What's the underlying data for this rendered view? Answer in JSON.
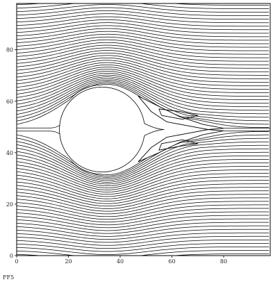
{
  "chart_data": {
    "type": "contour",
    "title": "",
    "caption": "FF5",
    "xlabel": "",
    "ylabel": "",
    "xlim": [
      0,
      98
    ],
    "ylim": [
      0,
      98
    ],
    "x_ticks": [
      0,
      20,
      40,
      60,
      80
    ],
    "y_ticks": [
      0,
      20,
      40,
      60,
      80
    ],
    "grid": false,
    "legend": "none",
    "streamline_count": 72,
    "body": {
      "description_shape": "bluff body with tapering tail",
      "center": [
        33,
        49
      ],
      "radius": 16.5,
      "tail_tip_x": 57
    },
    "recirculation": {
      "upper_outer": [
        [
          47,
          62
        ],
        [
          55,
          58
        ],
        [
          63,
          54
        ],
        [
          72,
          51
        ],
        [
          80,
          49.5
        ],
        [
          74,
          49
        ],
        [
          66,
          50.5
        ],
        [
          58,
          52
        ],
        [
          52,
          56
        ]
      ],
      "upper_inner": [
        [
          55,
          57
        ],
        [
          63,
          56
        ],
        [
          70,
          54.5
        ],
        [
          64,
          53
        ],
        [
          56,
          54.5
        ]
      ],
      "lower_outer": [
        [
          47,
          36.5
        ],
        [
          55,
          40
        ],
        [
          63,
          44
        ],
        [
          72,
          47
        ],
        [
          80,
          48.5
        ],
        [
          74,
          49
        ],
        [
          66,
          47.5
        ],
        [
          58,
          46
        ],
        [
          52,
          42
        ]
      ],
      "lower_inner": [
        [
          55,
          41
        ],
        [
          63,
          42.5
        ],
        [
          70,
          43.5
        ],
        [
          64,
          45
        ],
        [
          56,
          43.5
        ]
      ]
    }
  }
}
